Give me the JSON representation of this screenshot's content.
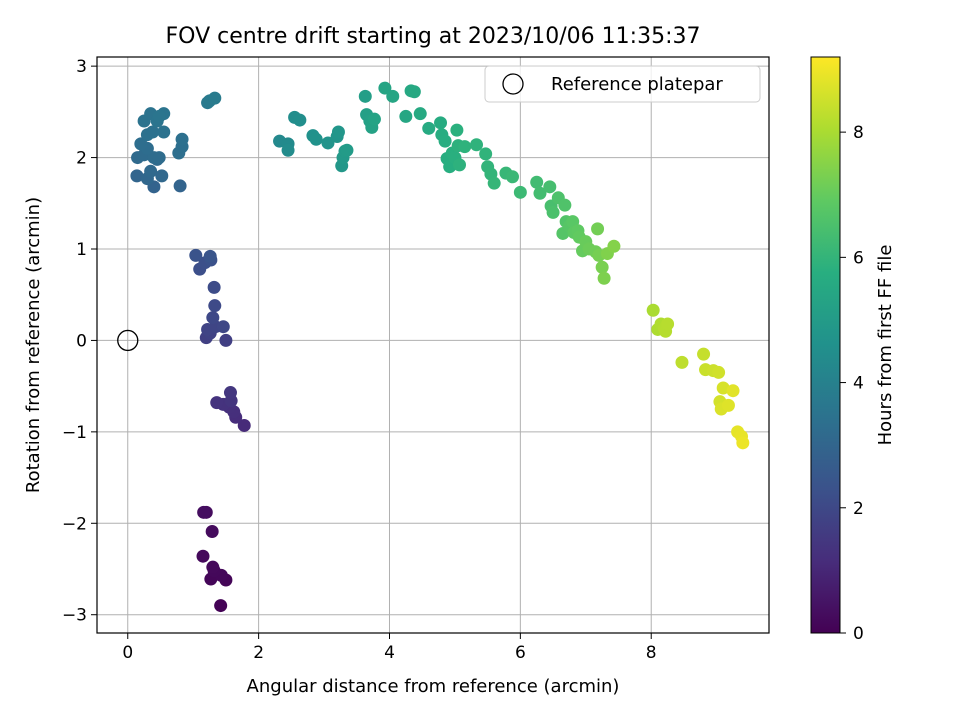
{
  "chart_data": {
    "type": "scatter",
    "title": "FOV centre drift starting at 2023/10/06 11:35:37",
    "xlabel": "Angular distance from reference (arcmin)",
    "ylabel": "Rotation from reference (arcmin)",
    "xlim": [
      -0.47,
      9.8
    ],
    "ylim": [
      -3.2,
      3.1
    ],
    "xticks": [
      0,
      2,
      4,
      6,
      8
    ],
    "yticks": [
      -3,
      -2,
      -1,
      0,
      1,
      2,
      3
    ],
    "xtick_labels": [
      "0",
      "2",
      "4",
      "6",
      "8"
    ],
    "ytick_labels": [
      "−3",
      "−2",
      "−1",
      "0",
      "1",
      "2",
      "3"
    ],
    "grid": true,
    "legend": {
      "placement": "top-right",
      "entries": [
        "Reference platepar"
      ]
    },
    "reference_point": {
      "x": 0,
      "y": 0,
      "label": "Reference platepar"
    },
    "colorbar": {
      "label": "Hours from first FF file",
      "colormap": "viridis",
      "range": [
        0,
        9.2
      ],
      "ticks": [
        0,
        2,
        4,
        6,
        8
      ],
      "tick_labels": [
        "0",
        "2",
        "4",
        "6",
        "8"
      ]
    },
    "series": [
      {
        "color_variable": "Hours from first FF file",
        "points": [
          [
            1.42,
            -2.9,
            0.05
          ],
          [
            1.5,
            -2.62,
            0.1
          ],
          [
            1.27,
            -2.61,
            0.12
          ],
          [
            1.43,
            -2.57,
            0.15
          ],
          [
            1.32,
            -2.52,
            0.18
          ],
          [
            1.3,
            -2.48,
            0.2
          ],
          [
            1.15,
            -2.36,
            0.22
          ],
          [
            1.29,
            -2.09,
            0.26
          ],
          [
            1.2,
            -1.88,
            0.3
          ],
          [
            1.16,
            -1.88,
            0.34
          ],
          [
            1.78,
            -0.93,
            1.1
          ],
          [
            1.65,
            -0.84,
            1.15
          ],
          [
            1.62,
            -0.78,
            1.2
          ],
          [
            1.55,
            -0.73,
            1.25
          ],
          [
            1.46,
            -0.7,
            1.3
          ],
          [
            1.36,
            -0.68,
            1.35
          ],
          [
            1.58,
            -0.66,
            1.4
          ],
          [
            1.57,
            -0.57,
            1.45
          ],
          [
            1.5,
            0.0,
            1.7
          ],
          [
            1.2,
            0.03,
            1.75
          ],
          [
            1.26,
            0.08,
            1.8
          ],
          [
            1.22,
            0.12,
            1.85
          ],
          [
            1.34,
            0.15,
            1.9
          ],
          [
            1.46,
            0.15,
            1.95
          ],
          [
            1.3,
            0.25,
            2.0
          ],
          [
            1.33,
            0.38,
            2.05
          ],
          [
            1.32,
            0.58,
            2.1
          ],
          [
            1.1,
            0.78,
            2.2
          ],
          [
            1.18,
            0.85,
            2.25
          ],
          [
            1.27,
            0.88,
            2.3
          ],
          [
            1.04,
            0.93,
            2.35
          ],
          [
            1.26,
            0.92,
            2.4
          ],
          [
            0.4,
            1.68,
            2.9
          ],
          [
            0.8,
            1.69,
            2.95
          ],
          [
            0.14,
            1.8,
            3.0
          ],
          [
            0.3,
            1.77,
            3.05
          ],
          [
            0.52,
            1.8,
            3.1
          ],
          [
            0.35,
            1.85,
            3.12
          ],
          [
            0.45,
            1.98,
            3.15
          ],
          [
            0.15,
            2.0,
            3.18
          ],
          [
            0.25,
            2.03,
            3.2
          ],
          [
            0.4,
            2.0,
            3.22
          ],
          [
            0.48,
            2.0,
            3.25
          ],
          [
            0.3,
            2.1,
            3.28
          ],
          [
            0.2,
            2.15,
            3.3
          ],
          [
            0.78,
            2.05,
            3.33
          ],
          [
            0.83,
            2.12,
            3.36
          ],
          [
            0.83,
            2.2,
            3.38
          ],
          [
            0.3,
            2.25,
            3.4
          ],
          [
            0.38,
            2.28,
            3.42
          ],
          [
            0.55,
            2.28,
            3.45
          ],
          [
            0.25,
            2.4,
            3.48
          ],
          [
            0.35,
            2.48,
            3.5
          ],
          [
            0.45,
            2.4,
            3.52
          ],
          [
            0.55,
            2.48,
            3.54
          ],
          [
            0.48,
            2.45,
            3.56
          ],
          [
            1.22,
            2.6,
            3.7
          ],
          [
            1.25,
            2.62,
            3.75
          ],
          [
            1.33,
            2.65,
            3.8
          ],
          [
            2.32,
            2.18,
            4.3
          ],
          [
            2.45,
            2.15,
            4.35
          ],
          [
            2.45,
            2.08,
            4.4
          ],
          [
            2.55,
            2.44,
            4.45
          ],
          [
            2.63,
            2.41,
            4.5
          ],
          [
            2.83,
            2.24,
            4.6
          ],
          [
            2.88,
            2.2,
            4.65
          ],
          [
            3.06,
            2.16,
            4.7
          ],
          [
            3.2,
            2.23,
            4.75
          ],
          [
            3.22,
            2.28,
            4.8
          ],
          [
            3.27,
            1.91,
            4.85
          ],
          [
            3.29,
            2.0,
            4.9
          ],
          [
            3.32,
            2.07,
            4.95
          ],
          [
            3.35,
            2.08,
            5.0
          ],
          [
            3.63,
            2.67,
            5.1
          ],
          [
            3.65,
            2.47,
            5.15
          ],
          [
            3.7,
            2.4,
            5.2
          ],
          [
            3.73,
            2.33,
            5.25
          ],
          [
            3.77,
            2.42,
            5.3
          ],
          [
            3.93,
            2.76,
            5.35
          ],
          [
            4.05,
            2.67,
            5.4
          ],
          [
            4.25,
            2.45,
            5.45
          ],
          [
            4.33,
            2.73,
            5.5
          ],
          [
            4.38,
            2.72,
            5.52
          ],
          [
            4.47,
            2.48,
            5.55
          ],
          [
            4.6,
            2.32,
            5.6
          ],
          [
            4.78,
            2.38,
            5.65
          ],
          [
            4.8,
            2.25,
            5.68
          ],
          [
            4.85,
            2.18,
            5.7
          ],
          [
            4.88,
            1.99,
            5.72
          ],
          [
            4.92,
            1.9,
            5.75
          ],
          [
            4.96,
            2.05,
            5.78
          ],
          [
            5.0,
            2.0,
            5.8
          ],
          [
            5.03,
            2.3,
            5.82
          ],
          [
            5.05,
            2.13,
            5.85
          ],
          [
            5.07,
            1.92,
            5.88
          ],
          [
            5.15,
            2.12,
            5.9
          ],
          [
            5.33,
            2.14,
            5.92
          ],
          [
            5.47,
            2.04,
            5.95
          ],
          [
            5.5,
            1.9,
            5.98
          ],
          [
            5.55,
            1.82,
            6.0
          ],
          [
            5.6,
            1.72,
            6.05
          ],
          [
            5.78,
            1.83,
            6.1
          ],
          [
            5.88,
            1.79,
            6.15
          ],
          [
            6.0,
            1.62,
            6.2
          ],
          [
            6.25,
            1.73,
            6.3
          ],
          [
            6.3,
            1.61,
            6.35
          ],
          [
            6.45,
            1.68,
            6.4
          ],
          [
            6.47,
            1.47,
            6.45
          ],
          [
            6.5,
            1.4,
            6.5
          ],
          [
            6.58,
            1.56,
            6.55
          ],
          [
            6.68,
            1.48,
            6.6
          ],
          [
            6.7,
            1.3,
            6.65
          ],
          [
            6.65,
            1.17,
            6.7
          ],
          [
            6.75,
            1.25,
            6.75
          ],
          [
            6.8,
            1.3,
            6.8
          ],
          [
            6.82,
            1.18,
            6.85
          ],
          [
            6.88,
            1.2,
            6.9
          ],
          [
            6.9,
            1.13,
            6.95
          ],
          [
            6.95,
            0.98,
            7.0
          ],
          [
            7.0,
            1.08,
            7.05
          ],
          [
            7.05,
            1.0,
            7.1
          ],
          [
            7.15,
            0.97,
            7.15
          ],
          [
            7.18,
            1.22,
            7.2
          ],
          [
            7.2,
            0.93,
            7.25
          ],
          [
            7.25,
            0.8,
            7.3
          ],
          [
            7.28,
            0.68,
            7.35
          ],
          [
            7.33,
            0.95,
            7.4
          ],
          [
            7.43,
            1.03,
            7.45
          ],
          [
            8.03,
            0.33,
            8.0
          ],
          [
            8.1,
            0.12,
            8.05
          ],
          [
            8.15,
            0.18,
            8.1
          ],
          [
            8.2,
            0.13,
            8.15
          ],
          [
            8.22,
            0.1,
            8.18
          ],
          [
            8.25,
            0.18,
            8.2
          ],
          [
            8.47,
            -0.24,
            8.3
          ],
          [
            8.8,
            -0.15,
            8.4
          ],
          [
            8.83,
            -0.32,
            8.45
          ],
          [
            8.95,
            -0.33,
            8.5
          ],
          [
            9.03,
            -0.35,
            8.55
          ],
          [
            9.05,
            -0.67,
            8.6
          ],
          [
            9.1,
            -0.52,
            8.65
          ],
          [
            9.07,
            -0.75,
            8.7
          ],
          [
            9.18,
            -0.71,
            8.75
          ],
          [
            9.25,
            -0.55,
            8.8
          ],
          [
            9.32,
            -1.0,
            8.85
          ],
          [
            9.38,
            -1.05,
            8.9
          ],
          [
            9.4,
            -1.12,
            8.95
          ]
        ]
      }
    ]
  }
}
